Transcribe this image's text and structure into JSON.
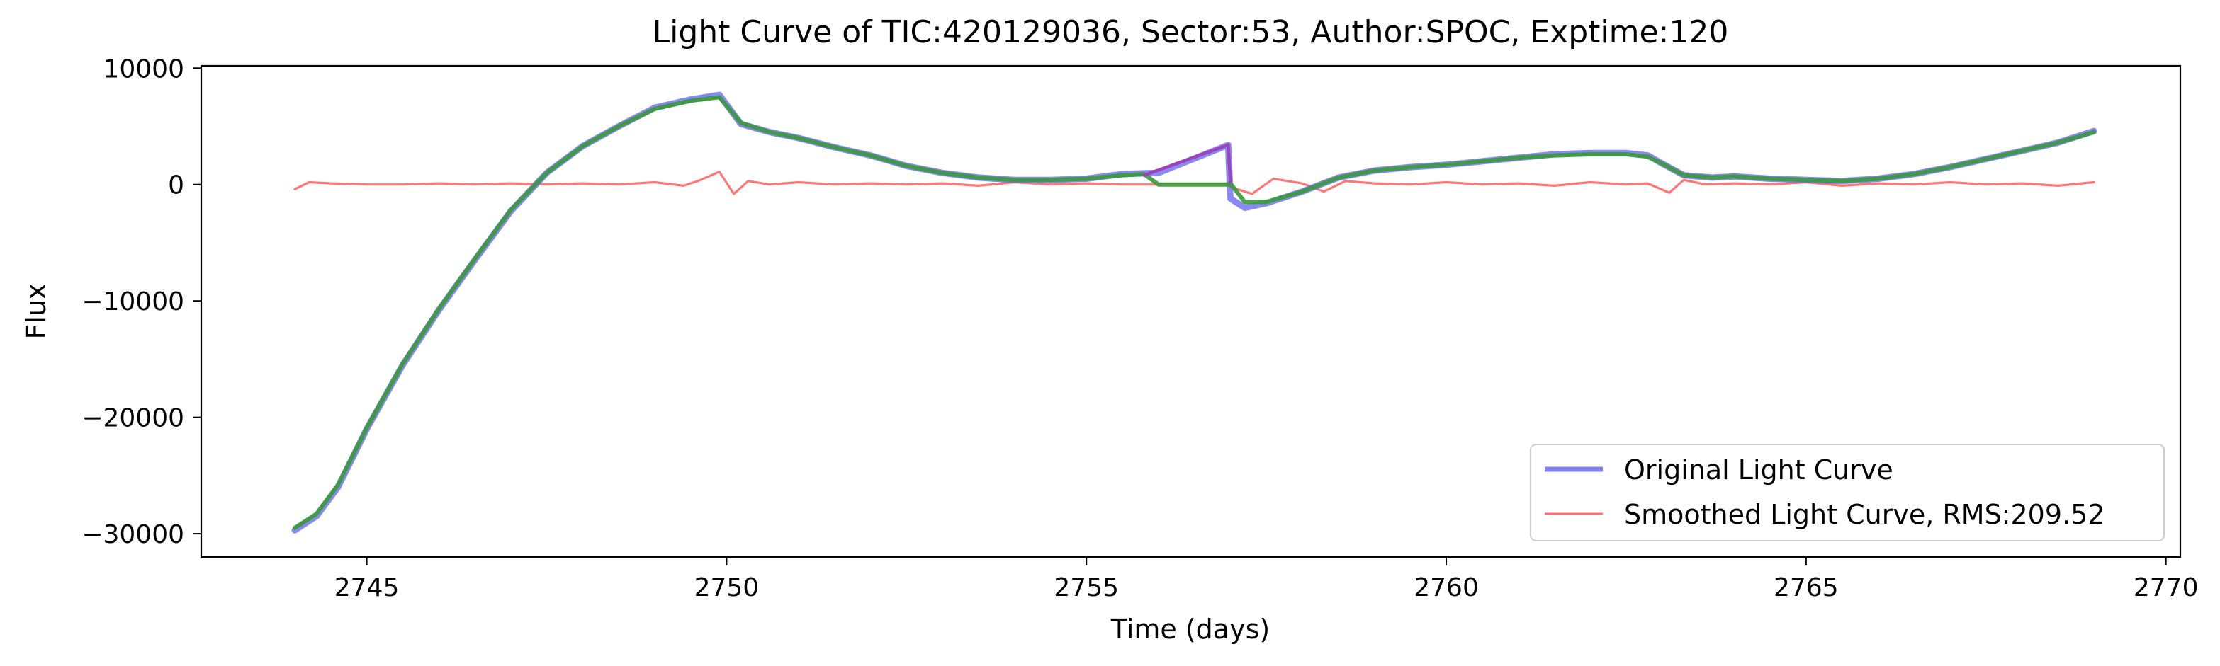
{
  "chart_data": {
    "type": "line",
    "title": "Light Curve of TIC:420129036, Sector:53, Author:SPOC, Exptime:120",
    "xlabel": "Time (days)",
    "ylabel": "Flux",
    "xlim": [
      2742.7,
      2770.2
    ],
    "ylim": [
      -32000,
      10200
    ],
    "xticks": [
      2745,
      2750,
      2755,
      2760,
      2765,
      2770
    ],
    "xtick_labels": [
      "2745",
      "2750",
      "2755",
      "2760",
      "2765",
      "2770"
    ],
    "yticks": [
      10000,
      0,
      -10000,
      -20000,
      -30000
    ],
    "ytick_labels": [
      "10000",
      "0",
      "−10000",
      "−20000",
      "−30000"
    ],
    "grid": false,
    "legend_position": "lower-right",
    "series": [
      {
        "name": "Original Light Curve",
        "color": "#6b6bf0",
        "x": [
          2744.0,
          2744.3,
          2744.6,
          2745.0,
          2745.5,
          2746.0,
          2746.5,
          2747.0,
          2747.5,
          2748.0,
          2748.5,
          2749.0,
          2749.5,
          2749.9,
          2750.2,
          2750.6,
          2751.0,
          2751.5,
          2752.0,
          2752.5,
          2753.0,
          2753.5,
          2754.0,
          2754.5,
          2755.0,
          2755.5,
          2756.0,
          2756.97,
          2757.0,
          2757.2,
          2757.5,
          2758.0,
          2758.5,
          2759.0,
          2759.5,
          2760.0,
          2760.5,
          2761.0,
          2761.5,
          2762.0,
          2762.5,
          2762.8,
          2763.0,
          2763.3,
          2763.7,
          2764.0,
          2764.5,
          2765.0,
          2765.5,
          2766.0,
          2766.5,
          2767.0,
          2767.5,
          2768.0,
          2768.5,
          2769.0
        ],
        "y": [
          -29700,
          -28500,
          -26000,
          -21000,
          -15500,
          -10800,
          -6500,
          -2300,
          1000,
          3300,
          5000,
          6600,
          7300,
          7700,
          5200,
          4500,
          4000,
          3200,
          2500,
          1600,
          1000,
          600,
          400,
          400,
          500,
          900,
          1000,
          3400,
          -1200,
          -2000,
          -1600,
          -600,
          600,
          1200,
          1500,
          1700,
          2000,
          2300,
          2600,
          2700,
          2700,
          2500,
          1800,
          800,
          600,
          700,
          500,
          400,
          300,
          500,
          900,
          1500,
          2200,
          2900,
          3600,
          4600
        ]
      },
      {
        "name": "Smoothed Light Curve, RMS:209.52",
        "color": "#ff7070",
        "x": [
          2744.0,
          2744.2,
          2744.5,
          2745.0,
          2745.5,
          2746.0,
          2746.5,
          2747.0,
          2747.5,
          2748.0,
          2748.5,
          2749.0,
          2749.4,
          2749.6,
          2749.9,
          2750.1,
          2750.3,
          2750.6,
          2751.0,
          2751.5,
          2752.0,
          2752.5,
          2753.0,
          2753.5,
          2754.0,
          2754.5,
          2755.0,
          2755.5,
          2756.0,
          2756.97,
          2757.0,
          2757.3,
          2757.6,
          2758.0,
          2758.3,
          2758.6,
          2759.0,
          2759.5,
          2760.0,
          2760.5,
          2761.0,
          2761.5,
          2762.0,
          2762.5,
          2762.8,
          2763.1,
          2763.3,
          2763.6,
          2764.0,
          2764.5,
          2765.0,
          2765.5,
          2766.0,
          2766.5,
          2767.0,
          2767.5,
          2768.0,
          2768.5,
          2769.0
        ],
        "y": [
          -400,
          200,
          100,
          0,
          0,
          100,
          0,
          100,
          0,
          100,
          0,
          200,
          -100,
          300,
          1100,
          -800,
          300,
          0,
          200,
          0,
          100,
          0,
          100,
          -100,
          200,
          0,
          100,
          0,
          0,
          0,
          -200,
          -800,
          500,
          100,
          -600,
          300,
          100,
          0,
          200,
          0,
          100,
          -100,
          200,
          0,
          100,
          -700,
          400,
          0,
          100,
          0,
          200,
          -100,
          100,
          0,
          200,
          0,
          100,
          -100,
          200
        ]
      },
      {
        "name": "",
        "color": "#3a9a3a",
        "x": [
          2744.0,
          2744.3,
          2744.6,
          2745.0,
          2745.5,
          2746.0,
          2746.5,
          2747.0,
          2747.5,
          2748.0,
          2748.5,
          2749.0,
          2749.5,
          2749.9,
          2750.2,
          2750.6,
          2751.0,
          2751.5,
          2752.0,
          2752.5,
          2753.0,
          2753.5,
          2754.0,
          2754.5,
          2755.0,
          2755.5,
          2755.8,
          2756.0,
          2756.97,
          2757.0,
          2757.2,
          2757.5,
          2758.0,
          2758.5,
          2759.0,
          2759.5,
          2760.0,
          2760.5,
          2761.0,
          2761.5,
          2762.0,
          2762.5,
          2762.8,
          2763.0,
          2763.3,
          2763.7,
          2764.0,
          2764.5,
          2765.0,
          2765.5,
          2766.0,
          2766.5,
          2767.0,
          2767.5,
          2768.0,
          2768.5,
          2769.0
        ],
        "y": [
          -29500,
          -28300,
          -25800,
          -20900,
          -15400,
          -10700,
          -6400,
          -2200,
          1000,
          3300,
          5000,
          6500,
          7200,
          7500,
          5300,
          4500,
          4000,
          3200,
          2500,
          1600,
          1000,
          600,
          400,
          400,
          500,
          800,
          900,
          0,
          0,
          100,
          -1500,
          -1500,
          -600,
          600,
          1200,
          1500,
          1700,
          2000,
          2300,
          2500,
          2600,
          2600,
          2400,
          1800,
          800,
          600,
          700,
          500,
          400,
          300,
          500,
          900,
          1500,
          2200,
          2900,
          3600,
          4500
        ]
      },
      {
        "name": "",
        "color": "#9c3fb4",
        "x": [
          2755.8,
          2756.97,
          2757.0
        ],
        "y": [
          800,
          3400,
          200
        ]
      }
    ]
  }
}
